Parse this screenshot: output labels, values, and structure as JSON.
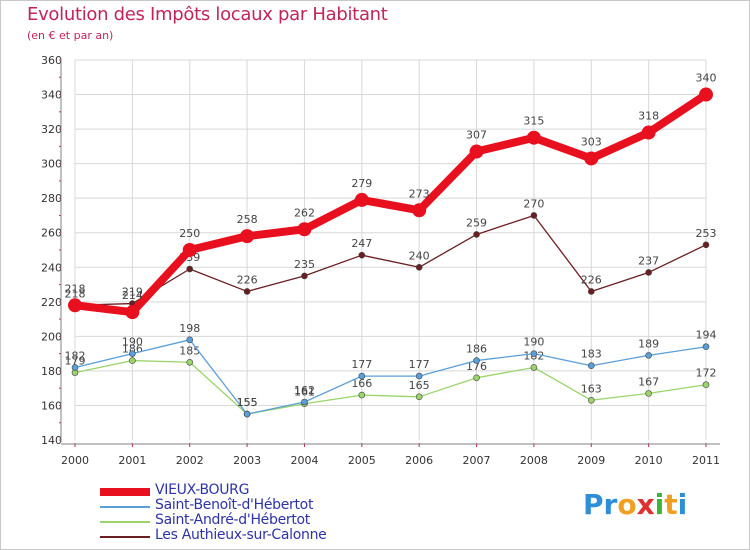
{
  "title": "Evolution des Impôts locaux par Habitant",
  "subtitle": "(en € et par an)",
  "brand": {
    "text": "Proxiti",
    "letters": [
      "P",
      "r",
      "o",
      "x",
      "i",
      "t",
      "i"
    ],
    "colors": [
      "#2f8fd6",
      "#2f8fd6",
      "#f0a020",
      "#e03030",
      "#3cb43c",
      "#f0a020",
      "#2f8fd6"
    ]
  },
  "colors": {
    "accent": "#c0245a",
    "legend_text": "#2e33a6",
    "grid": "#d8d8d8",
    "axis": "#808080"
  },
  "chart_data": {
    "type": "line",
    "title": "Evolution des Impôts locaux par Habitant",
    "subtitle": "(en € et par an)",
    "xlabel": "",
    "ylabel": "",
    "x": [
      "2000",
      "2001",
      "2002",
      "2003",
      "2004",
      "2005",
      "2006",
      "2007",
      "2008",
      "2009",
      "2010",
      "2011"
    ],
    "ylim": [
      140,
      360
    ],
    "yticks": [
      140,
      160,
      180,
      200,
      220,
      240,
      260,
      280,
      300,
      320,
      340,
      360
    ],
    "grid": true,
    "legend": "bottom-left",
    "series": [
      {
        "name": "Les Authieux-sur-Calonne",
        "color": "#6b1e22",
        "role": "thin",
        "values": [
          218,
          219,
          239,
          226,
          235,
          247,
          240,
          259,
          270,
          226,
          237,
          253
        ],
        "labels": [
          "218",
          "219",
          "239",
          "226",
          "235",
          "247",
          "240",
          "259",
          "270",
          "226",
          "237",
          "253"
        ]
      },
      {
        "name": "Saint-André-d'Hébertot",
        "color": "#9ad46a",
        "role": "thin",
        "values": [
          179,
          186,
          185,
          155,
          161,
          166,
          165,
          176,
          182,
          163,
          167,
          172
        ],
        "labels": [
          "179",
          "186",
          "185",
          "155",
          "161",
          "166",
          "165",
          "176",
          "182",
          "163",
          "167",
          "172"
        ]
      },
      {
        "name": "Saint-Benoît-d'Hébertot",
        "color": "#5b9fd8",
        "role": "thin",
        "values": [
          182,
          190,
          198,
          155,
          162,
          177,
          177,
          186,
          190,
          183,
          189,
          194
        ],
        "labels": [
          "182",
          "190",
          "198",
          "155",
          "162",
          "177",
          "177",
          "186",
          "190",
          "183",
          "189",
          "194"
        ]
      },
      {
        "name": "VIEUX-BOURG",
        "color": "#e8101e",
        "role": "thick",
        "values": [
          218,
          214,
          250,
          258,
          262,
          279,
          273,
          307,
          315,
          303,
          318,
          340
        ],
        "labels": [
          "218",
          "214",
          "250",
          "258",
          "262",
          "279",
          "273",
          "307",
          "315",
          "303",
          "318",
          "340"
        ]
      }
    ],
    "legend_order": [
      "VIEUX-BOURG",
      "Saint-Benoît-d'Hébertot",
      "Saint-André-d'Hébertot",
      "Les Authieux-sur-Calonne"
    ]
  }
}
